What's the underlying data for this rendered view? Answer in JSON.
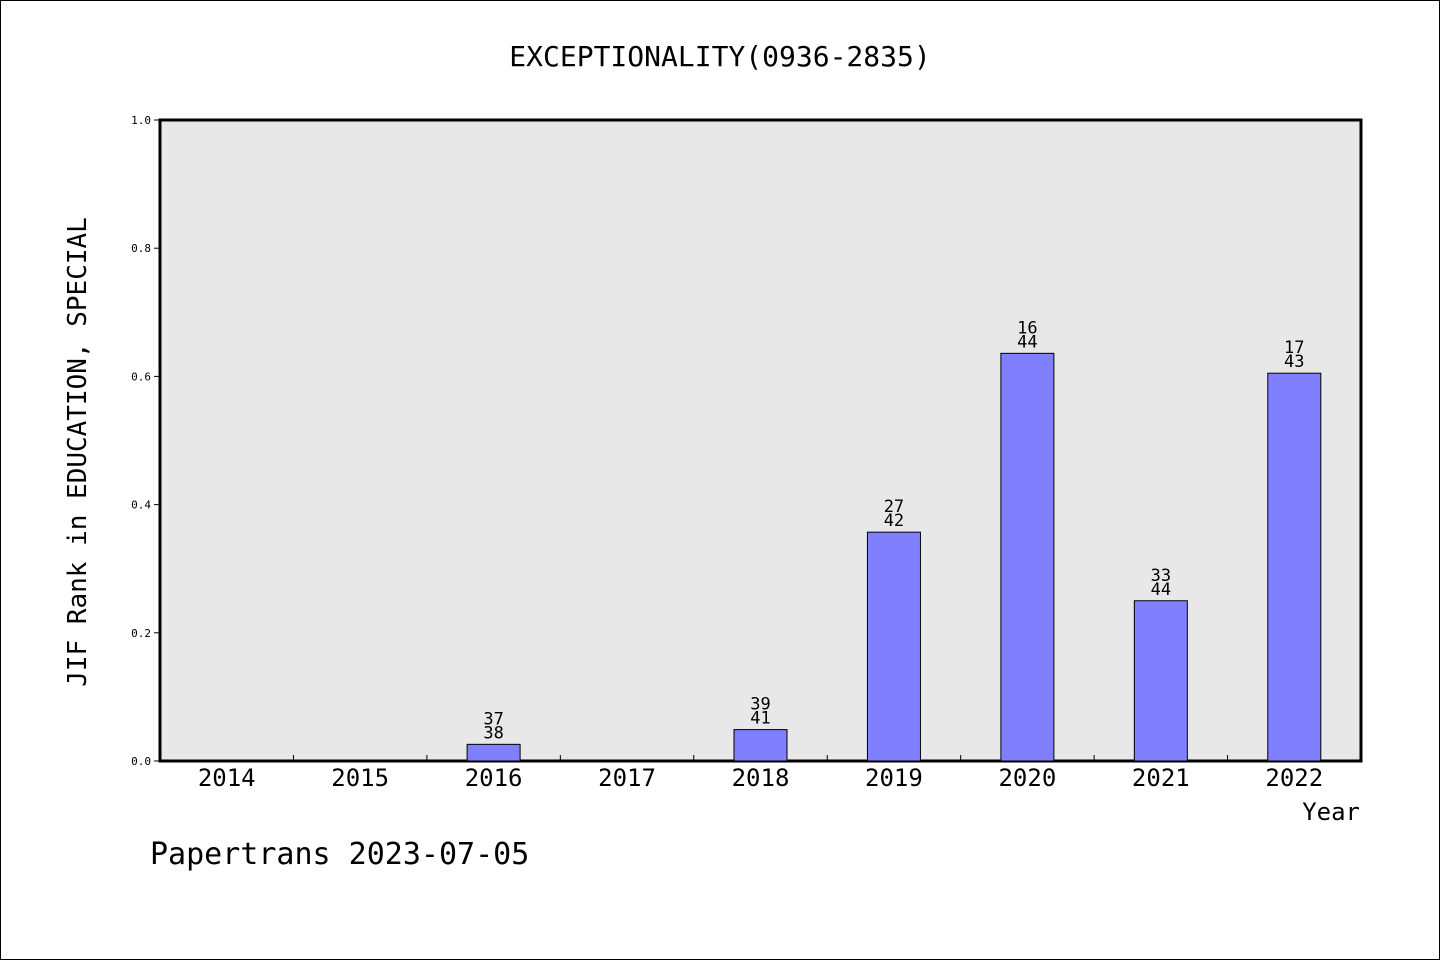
{
  "chart_data": {
    "type": "bar",
    "title": "EXCEPTIONALITY(0936-2835)",
    "xlabel": "Year",
    "ylabel": "JIF Rank in EDUCATION, SPECIAL",
    "ylim": [
      0,
      1.0
    ],
    "yticks": [
      "0.0",
      "0.2",
      "0.4",
      "0.6",
      "0.8",
      "1.0"
    ],
    "categories": [
      "2014",
      "2015",
      "2016",
      "2017",
      "2018",
      "2019",
      "2020",
      "2021",
      "2022"
    ],
    "values": [
      null,
      null,
      0.026,
      null,
      0.049,
      0.357,
      0.636,
      0.25,
      0.605
    ],
    "bar_labels": [
      null,
      null,
      {
        "top": "37",
        "bottom": "38"
      },
      null,
      {
        "top": "39",
        "bottom": "41"
      },
      {
        "top": "27",
        "bottom": "42"
      },
      {
        "top": "16",
        "bottom": "44"
      },
      {
        "top": "33",
        "bottom": "44"
      },
      {
        "top": "17",
        "bottom": "43"
      }
    ],
    "grid": false,
    "colors": {
      "bar": "#8080ff",
      "plot_bg": "#e8e8e8"
    }
  },
  "footer": {
    "text": "Papertrans 2023-07-05"
  }
}
